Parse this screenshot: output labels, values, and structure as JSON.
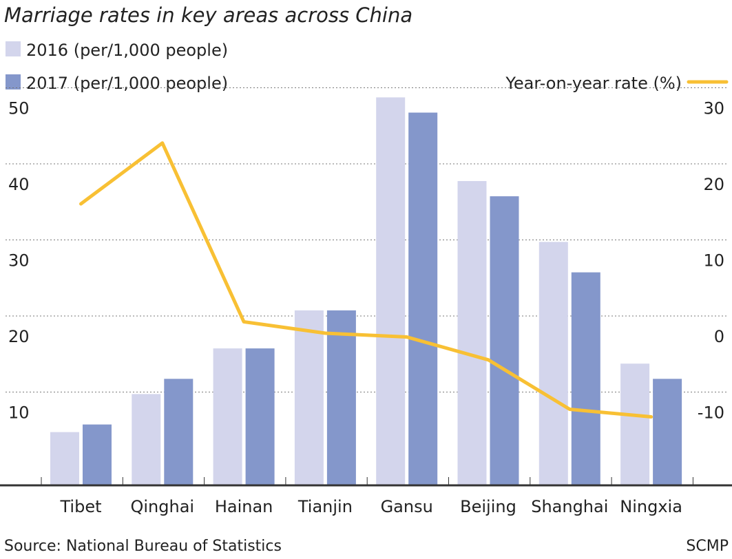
{
  "title": "Marriage rates in key areas across China",
  "source": "Source: National Bureau of Statistics",
  "credit": "SCMP",
  "colors": {
    "series_2016": "#d3d5ec",
    "series_2017": "#8497cb",
    "line": "#f8c034",
    "grid": "#777777",
    "axis": "#333333",
    "text": "#222222"
  },
  "chart_data": {
    "type": "bar",
    "categories": [
      "Tibet",
      "Qinghai",
      "Hainan",
      "Tianjin",
      "Gansu",
      "Beijing",
      "Shanghai",
      "Ningxia"
    ],
    "series": [
      {
        "name": "2016 (per/1,000 people)",
        "axis": "left",
        "values": [
          7,
          12,
          18,
          23,
          51,
          40,
          32,
          16
        ]
      },
      {
        "name": "2017 (per/1,000 people)",
        "axis": "left",
        "values": [
          8,
          14,
          18,
          23,
          49,
          38,
          28,
          14
        ]
      }
    ],
    "line_series": {
      "type": "line",
      "name": "Year-on-year rate (%)",
      "axis": "right",
      "values": [
        17,
        25,
        1.5,
        0,
        -0.5,
        -3.5,
        -10,
        -11
      ]
    },
    "y_left": {
      "ticks": [
        10,
        20,
        30,
        40,
        50
      ],
      "ylim": [
        0,
        51
      ]
    },
    "y_right": {
      "ticks": [
        -10,
        0,
        10,
        20,
        30
      ],
      "ylim": [
        -20,
        31
      ]
    },
    "grid": true,
    "legend_placement": "top-left; line legend top-right"
  }
}
